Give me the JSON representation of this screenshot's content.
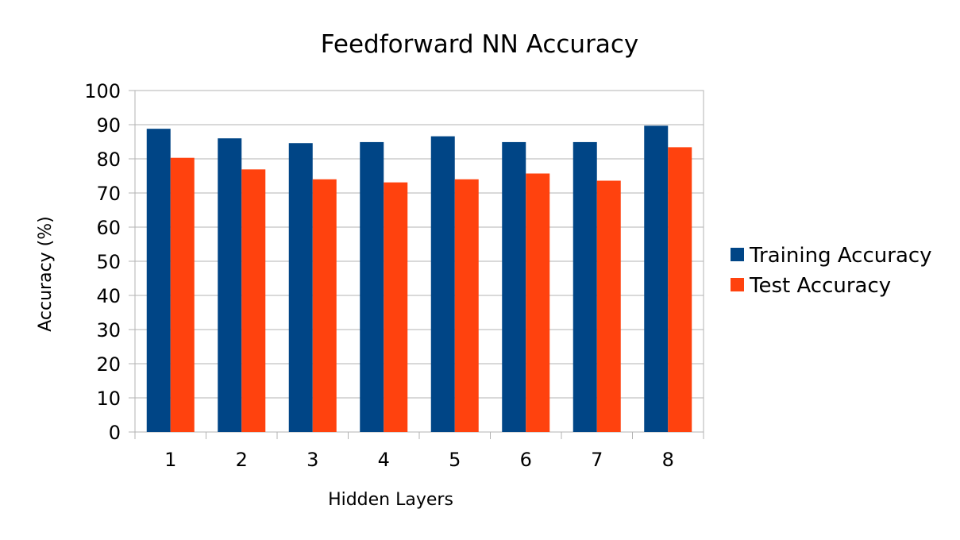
{
  "chart_data": {
    "type": "bar",
    "title": "Feedforward NN Accuracy",
    "xlabel": "Hidden Layers",
    "ylabel": "Accuracy (%)",
    "categories": [
      "1",
      "2",
      "3",
      "4",
      "5",
      "6",
      "7",
      "8"
    ],
    "series": [
      {
        "name": "Training Accuracy",
        "color": "#004586",
        "values": [
          88.8,
          86,
          84.6,
          84.9,
          86.6,
          84.9,
          84.9,
          89.7
        ]
      },
      {
        "name": "Test Accuracy",
        "color": "#ff420e",
        "values": [
          80.3,
          76.9,
          74,
          73.1,
          74,
          75.7,
          73.6,
          83.4
        ]
      }
    ],
    "ylim": [
      0,
      100
    ],
    "yticks": [
      0,
      10,
      20,
      30,
      40,
      50,
      60,
      70,
      80,
      90,
      100
    ],
    "grid": true,
    "legend_position": "right"
  }
}
